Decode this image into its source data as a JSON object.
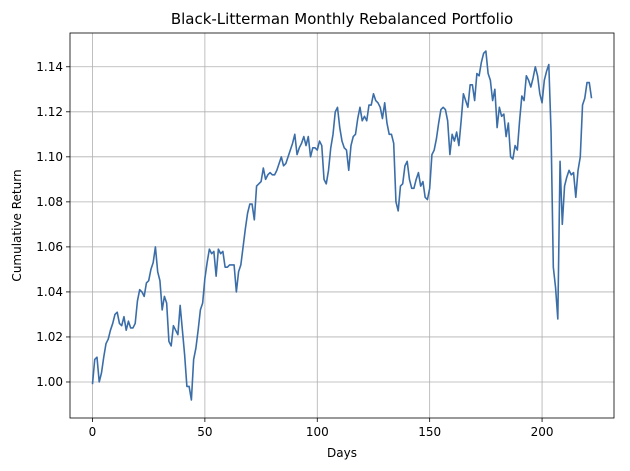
{
  "chart_data": {
    "type": "line",
    "title": "Black-Litterman Monthly Rebalanced Portfolio",
    "xlabel": "Days",
    "ylabel": "Cumulative Return",
    "xlim": [
      -10,
      232
    ],
    "ylim": [
      0.984,
      1.155
    ],
    "x_ticks": [
      0,
      50,
      100,
      150,
      200
    ],
    "y_ticks": [
      1.0,
      1.02,
      1.04,
      1.06,
      1.08,
      1.1,
      1.12,
      1.14
    ],
    "grid": true,
    "line_color": "#3b6ea8",
    "series": [
      {
        "values": [
          0.999,
          1.01,
          1.011,
          1.0,
          1.004,
          1.011,
          1.017,
          1.019,
          1.023,
          1.026,
          1.03,
          1.031,
          1.026,
          1.025,
          1.029,
          1.023,
          1.027,
          1.024,
          1.024,
          1.026,
          1.036,
          1.041,
          1.04,
          1.038,
          1.044,
          1.045,
          1.05,
          1.053,
          1.06,
          1.049,
          1.045,
          1.032,
          1.038,
          1.035,
          1.018,
          1.016,
          1.025,
          1.023,
          1.021,
          1.034,
          1.023,
          1.012,
          0.998,
          0.998,
          0.992,
          1.01,
          1.015,
          1.023,
          1.032,
          1.035,
          1.046,
          1.053,
          1.059,
          1.057,
          1.058,
          1.047,
          1.059,
          1.057,
          1.058,
          1.051,
          1.051,
          1.052,
          1.052,
          1.052,
          1.04,
          1.049,
          1.052,
          1.06,
          1.068,
          1.075,
          1.079,
          1.079,
          1.072,
          1.087,
          1.088,
          1.089,
          1.095,
          1.09,
          1.092,
          1.093,
          1.092,
          1.092,
          1.094,
          1.097,
          1.1,
          1.096,
          1.097,
          1.1,
          1.103,
          1.106,
          1.11,
          1.101,
          1.104,
          1.106,
          1.109,
          1.105,
          1.109,
          1.1,
          1.104,
          1.104,
          1.103,
          1.107,
          1.105,
          1.09,
          1.088,
          1.094,
          1.104,
          1.11,
          1.12,
          1.122,
          1.113,
          1.107,
          1.104,
          1.103,
          1.094,
          1.105,
          1.109,
          1.11,
          1.117,
          1.122,
          1.116,
          1.118,
          1.116,
          1.123,
          1.123,
          1.128,
          1.125,
          1.124,
          1.122,
          1.117,
          1.124,
          1.115,
          1.11,
          1.11,
          1.106,
          1.08,
          1.076,
          1.087,
          1.088,
          1.096,
          1.098,
          1.09,
          1.086,
          1.086,
          1.09,
          1.093,
          1.087,
          1.089,
          1.082,
          1.081,
          1.086,
          1.101,
          1.103,
          1.108,
          1.115,
          1.121,
          1.122,
          1.121,
          1.116,
          1.101,
          1.11,
          1.107,
          1.111,
          1.105,
          1.116,
          1.128,
          1.125,
          1.122,
          1.132,
          1.132,
          1.125,
          1.137,
          1.136,
          1.142,
          1.146,
          1.147,
          1.137,
          1.134,
          1.125,
          1.13,
          1.113,
          1.122,
          1.118,
          1.119,
          1.109,
          1.115,
          1.1,
          1.099,
          1.105,
          1.103,
          1.116,
          1.127,
          1.125,
          1.136,
          1.134,
          1.131,
          1.135,
          1.14,
          1.136,
          1.128,
          1.124,
          1.134,
          1.138,
          1.141,
          1.111,
          1.051,
          1.042,
          1.028,
          1.098,
          1.07,
          1.087,
          1.091,
          1.094,
          1.092,
          1.093,
          1.082,
          1.094,
          1.1,
          1.123,
          1.126,
          1.133,
          1.133,
          1.126
        ]
      }
    ]
  }
}
